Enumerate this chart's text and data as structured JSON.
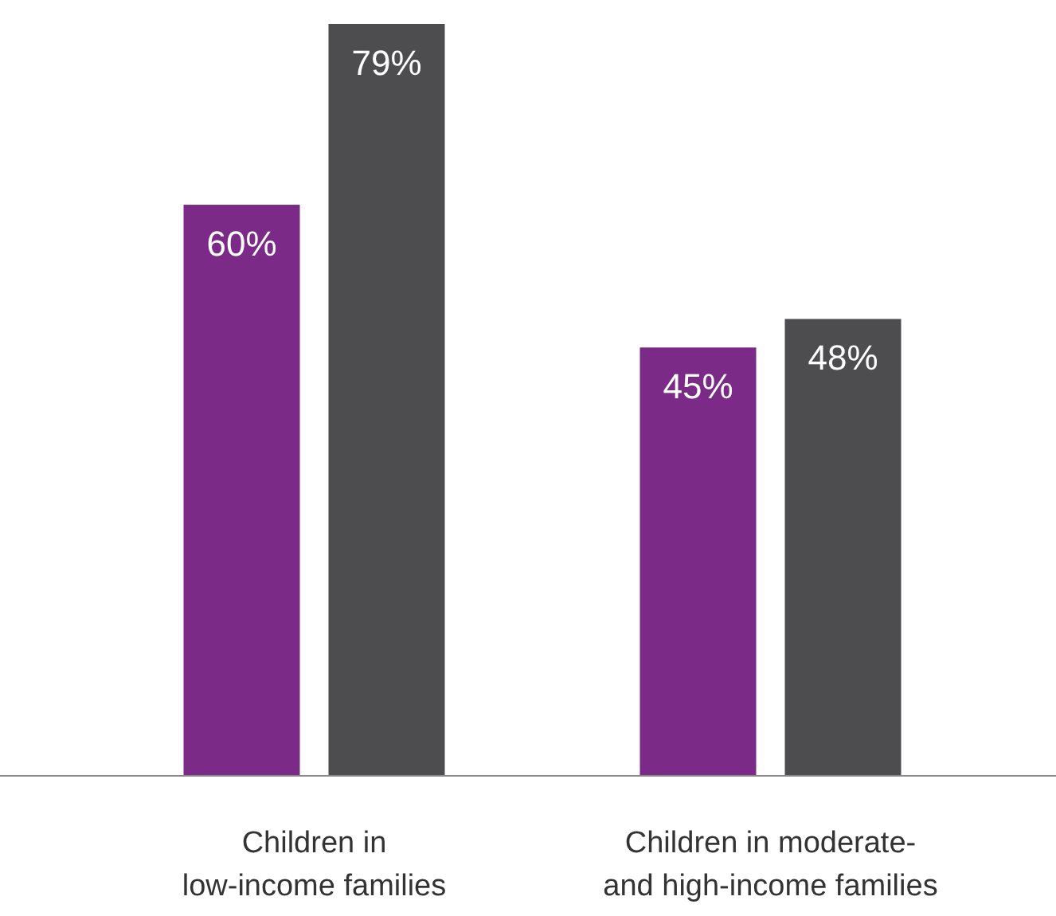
{
  "chart_data": {
    "type": "bar",
    "categories": [
      "Children in\nlow-income families",
      "Children in moderate-\nand high-income families"
    ],
    "series": [
      {
        "color": "#7b2a87",
        "values": [
          60,
          45
        ],
        "value_labels": [
          "60%",
          "45%"
        ]
      },
      {
        "color": "#4d4d4f",
        "values": [
          79,
          48
        ],
        "value_labels": [
          "79%",
          "48%"
        ]
      }
    ]
  }
}
